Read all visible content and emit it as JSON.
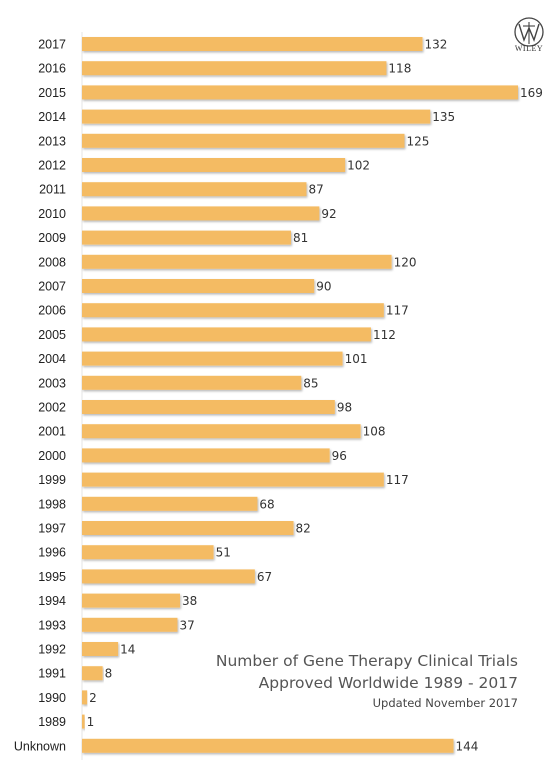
{
  "chart_data": {
    "type": "bar",
    "orientation": "horizontal",
    "title_lines": [
      "Number of Gene Therapy Clinical Trials",
      "Approved Worldwide 1989 - 2017"
    ],
    "subtitle": "Updated November 2017",
    "categories": [
      "2017",
      "2016",
      "2015",
      "2014",
      "2013",
      "2012",
      "2011",
      "2010",
      "2009",
      "2008",
      "2007",
      "2006",
      "2005",
      "2004",
      "2003",
      "2002",
      "2001",
      "2000",
      "1999",
      "1998",
      "1997",
      "1996",
      "1995",
      "1994",
      "1993",
      "1992",
      "1991",
      "1990",
      "1989",
      "Unknown"
    ],
    "values": [
      132,
      118,
      169,
      135,
      125,
      102,
      87,
      92,
      81,
      120,
      90,
      117,
      112,
      101,
      85,
      98,
      108,
      96,
      117,
      68,
      82,
      51,
      67,
      38,
      37,
      14,
      8,
      2,
      1,
      144
    ],
    "xlim": [
      0,
      169
    ],
    "grid": false,
    "bar_color": "#F4BB63"
  },
  "logo": {
    "text": "WILEY"
  }
}
